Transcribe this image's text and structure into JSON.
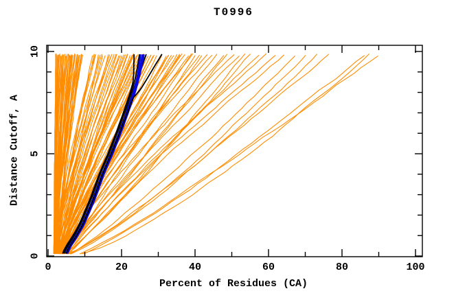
{
  "chart_data": {
    "type": "line",
    "title": "T0996",
    "xlabel": "Percent of Residues (CA)",
    "ylabel": "Distance Cutoff, A",
    "xlim": [
      0,
      100
    ],
    "ylim": [
      0,
      10
    ],
    "grid": false,
    "legend": "none",
    "x_ticks": {
      "major": [
        0,
        20,
        40,
        60,
        80,
        100
      ],
      "minor": [
        10,
        30,
        50,
        70,
        90
      ]
    },
    "y_ticks": {
      "major": [
        0,
        5,
        10
      ],
      "minor": [
        1,
        2,
        3,
        4,
        6,
        7,
        8,
        9
      ]
    },
    "colors": {
      "model_curves": "#FF8C00",
      "highlight_blue": "#0808DC",
      "highlight_black": "#000000",
      "axis": "#000000",
      "background": "#FFFFFF"
    },
    "description": "Cumulative curves: percent of CA residues (x) under distance cutoff (y) for many predicted models; orange = all models, blue/black = highlighted model bundle.",
    "curve_bottom_cutoff": 0.1,
    "curve_top_cutoff": 9.85,
    "orange_curves": {
      "count": 122,
      "end_percents": [
        2.0,
        2.1,
        2.3,
        2.6,
        2.8,
        2.9,
        3.0,
        3.2,
        3.4,
        3.5,
        3.8,
        4.0,
        4.1,
        4.2,
        4.4,
        4.7,
        4.9,
        5.0,
        5.1,
        5.2,
        5.5,
        5.6,
        5.8,
        6.0,
        6.1,
        6.3,
        6.4,
        6.6,
        6.9,
        7.0,
        7.1,
        7.2,
        7.4,
        7.7,
        7.9,
        8.0,
        8.1,
        8.2,
        8.5,
        8.6,
        8.8,
        9.1,
        9.2,
        9.3,
        12.0,
        12.5,
        12.8,
        13.0,
        13.6,
        14.2,
        14.6,
        15.0,
        15.6,
        16.3,
        16.9,
        17.0,
        17.4,
        18.0,
        18.5,
        19.0,
        19.3,
        19.6,
        20.1,
        20.7,
        21.2,
        21.5,
        21.8,
        22.3,
        22.9,
        23.4,
        23.7,
        24.0,
        24.6,
        25.1,
        25.7,
        25.9,
        26.2,
        26.8,
        27.3,
        27.9,
        28.1,
        28.4,
        29.0,
        29.5,
        30.3,
        31.1,
        31.9,
        32.7,
        33.0,
        33.5,
        34.3,
        35.1,
        35.9,
        36.3,
        36.7,
        37.5,
        38.3,
        39.2,
        39.7,
        40.1,
        41.0,
        41.9,
        43.0,
        44.5,
        46.0,
        47.5,
        49.0,
        50.5,
        52.0,
        53.5,
        55.0,
        57.0,
        59.5,
        62.0,
        64.5,
        67.0,
        70.0,
        73.0,
        76.0,
        86.8,
        87.4,
        89.5
      ],
      "start_rule": {
        "base": 1.7,
        "slope": 0.055,
        "jitter": 1.8,
        "min": 1.6,
        "max": 9.6,
        "long_threshold": 80,
        "long_bonus": 2.4
      },
      "shape_rule": {
        "base": 1.32,
        "slope": -0.005,
        "jitter": 0.3,
        "min": 0.72
      }
    },
    "bundle_track": [
      [
        0.15,
        4.5
      ],
      [
        0.5,
        5.5
      ],
      [
        1.0,
        7.3
      ],
      [
        1.5,
        8.9
      ],
      [
        2.0,
        10.1
      ],
      [
        2.5,
        11.3
      ],
      [
        3.0,
        12.4
      ],
      [
        3.5,
        13.4
      ],
      [
        4.0,
        14.4
      ],
      [
        5.0,
        16.8
      ],
      [
        6.0,
        19.0
      ],
      [
        7.0,
        21.0
      ],
      [
        8.0,
        22.9
      ],
      [
        9.0,
        24.4
      ],
      [
        9.85,
        25.4
      ]
    ],
    "blue_model_ends": [
      25.2,
      25.7,
      26.1
    ],
    "black_model_ends": [
      23.4,
      24.9,
      26.7
    ],
    "black_bend_model": [
      [
        7.0,
        21.6
      ],
      [
        7.7,
        23.0
      ],
      [
        8.15,
        25.2
      ],
      [
        8.8,
        27.4
      ],
      [
        9.4,
        29.4
      ],
      [
        9.87,
        31.0
      ]
    ]
  }
}
